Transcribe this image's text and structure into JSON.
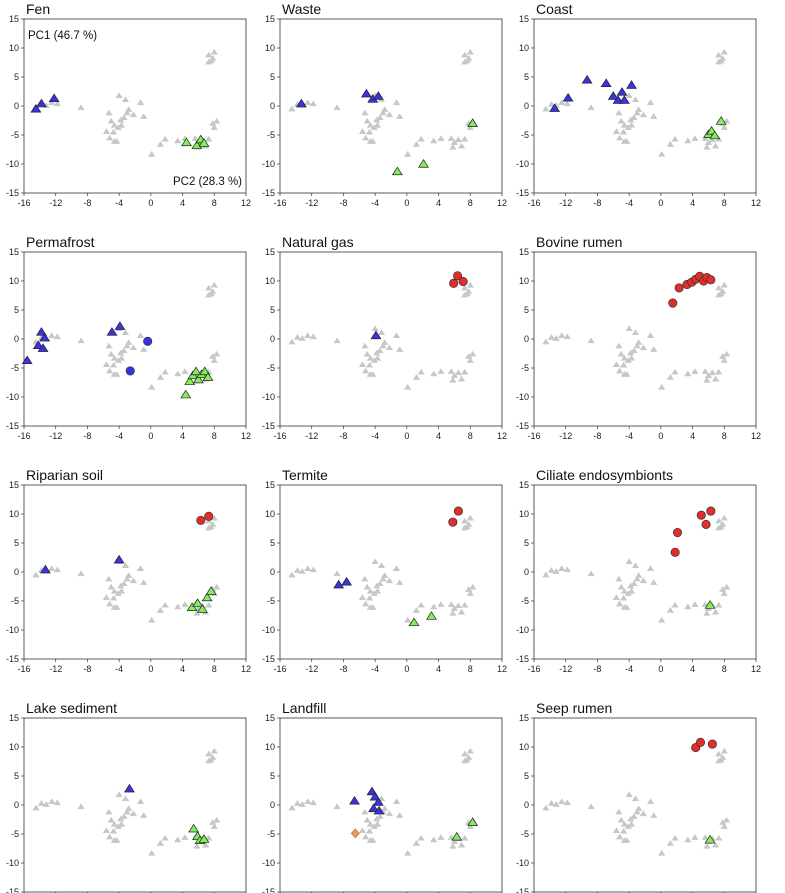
{
  "colors": {
    "grey": "#c4c8c6",
    "blue": "#3a33e6",
    "green": "#82ee5a",
    "red": "#e12e2a",
    "orange": "#f09a5c"
  },
  "axes": {
    "xticks": [
      "-16",
      "-12",
      "-8",
      "-4",
      "0",
      "4",
      "8",
      "12"
    ],
    "yticks": [
      "15",
      "10",
      "5",
      "0",
      "-5",
      "-10",
      "-15"
    ],
    "pc1_label": "PC1 (46.7 %)",
    "pc2_label": "PC2 (28.3 %)"
  },
  "chart_data": {
    "type": "scatter",
    "xlim": [
      -16,
      12
    ],
    "ylim": [
      -15,
      15
    ],
    "grid": false,
    "background_points": [
      [
        -14.5,
        -0.5
      ],
      [
        -13.8,
        0.3
      ],
      [
        -13.2,
        0.1
      ],
      [
        -12.5,
        0.6
      ],
      [
        -11.8,
        0.4
      ],
      [
        -8.8,
        -0.3
      ],
      [
        -5.3,
        -1.2
      ],
      [
        -5.0,
        -2.6
      ],
      [
        -4.6,
        -3.3
      ],
      [
        -4.7,
        -4.5
      ],
      [
        -4.1,
        -3.7
      ],
      [
        -3.8,
        -2.4
      ],
      [
        -3.4,
        -2.0
      ],
      [
        -3.0,
        -1.2
      ],
      [
        -4.0,
        1.8
      ],
      [
        -3.2,
        1.1
      ],
      [
        -5.6,
        -4.4
      ],
      [
        -5.2,
        -5.5
      ],
      [
        -4.6,
        -6.1
      ],
      [
        -3.7,
        -3.3
      ],
      [
        -2.8,
        -0.6
      ],
      [
        -2.2,
        -1.5
      ],
      [
        -0.9,
        -1.8
      ],
      [
        -1.3,
        0.6
      ],
      [
        -4.3,
        -6.1
      ],
      [
        0.1,
        -8.3
      ],
      [
        1.2,
        -6.6
      ],
      [
        1.8,
        -5.7
      ],
      [
        3.4,
        -6.0
      ],
      [
        4.3,
        -5.6
      ],
      [
        5.6,
        -5.6
      ],
      [
        6.0,
        -6.3
      ],
      [
        6.5,
        -5.8
      ],
      [
        5.8,
        -7.1
      ],
      [
        6.9,
        -6.9
      ],
      [
        7.3,
        -5.7
      ],
      [
        7.8,
        -3.0
      ],
      [
        8.3,
        -2.6
      ],
      [
        8.0,
        -3.7
      ],
      [
        7.3,
        7.6
      ],
      [
        7.8,
        8.2
      ],
      [
        7.3,
        8.8
      ],
      [
        8.0,
        9.3
      ],
      [
        7.6,
        7.8
      ]
    ],
    "panels": [
      {
        "title": "Fen",
        "points": [
          {
            "x": -14.5,
            "y": -0.5,
            "c": "blue",
            "m": "tri"
          },
          {
            "x": -13.8,
            "y": 0.4,
            "c": "blue",
            "m": "tri"
          },
          {
            "x": -12.2,
            "y": 1.3,
            "c": "blue",
            "m": "tri"
          },
          {
            "x": 4.5,
            "y": -6.3,
            "c": "green",
            "m": "tri"
          },
          {
            "x": 5.8,
            "y": -6.8,
            "c": "green",
            "m": "tri"
          },
          {
            "x": 6.3,
            "y": -5.8,
            "c": "green",
            "m": "tri"
          },
          {
            "x": 6.7,
            "y": -6.4,
            "c": "green",
            "m": "tri"
          }
        ]
      },
      {
        "title": "Waste",
        "points": [
          {
            "x": -13.3,
            "y": 0.4,
            "c": "blue",
            "m": "tri"
          },
          {
            "x": -5.1,
            "y": 2.1,
            "c": "blue",
            "m": "tri"
          },
          {
            "x": -4.3,
            "y": 1.2,
            "c": "blue",
            "m": "tri"
          },
          {
            "x": -3.6,
            "y": 1.7,
            "c": "blue",
            "m": "tri"
          },
          {
            "x": -1.2,
            "y": -11.3,
            "c": "green",
            "m": "tri"
          },
          {
            "x": 2.1,
            "y": -10.0,
            "c": "green",
            "m": "tri"
          },
          {
            "x": 8.3,
            "y": -3.0,
            "c": "green",
            "m": "tri"
          }
        ]
      },
      {
        "title": "Coast",
        "points": [
          {
            "x": -13.4,
            "y": -0.4,
            "c": "blue",
            "m": "tri"
          },
          {
            "x": -11.7,
            "y": 1.4,
            "c": "blue",
            "m": "tri"
          },
          {
            "x": -9.3,
            "y": 4.5,
            "c": "blue",
            "m": "tri"
          },
          {
            "x": -6.9,
            "y": 3.9,
            "c": "blue",
            "m": "tri"
          },
          {
            "x": -6.0,
            "y": 1.7,
            "c": "blue",
            "m": "tri"
          },
          {
            "x": -5.4,
            "y": 1.0,
            "c": "blue",
            "m": "tri"
          },
          {
            "x": -4.9,
            "y": 2.4,
            "c": "blue",
            "m": "tri"
          },
          {
            "x": -4.6,
            "y": 1.0,
            "c": "blue",
            "m": "tri"
          },
          {
            "x": -3.7,
            "y": 3.6,
            "c": "blue",
            "m": "tri"
          },
          {
            "x": 6.0,
            "y": -4.9,
            "c": "green",
            "m": "tri"
          },
          {
            "x": 6.4,
            "y": -4.3,
            "c": "green",
            "m": "tri"
          },
          {
            "x": 6.8,
            "y": -5.1,
            "c": "green",
            "m": "tri"
          },
          {
            "x": 7.6,
            "y": -2.6,
            "c": "green",
            "m": "tri"
          }
        ]
      },
      {
        "title": "Permafrost",
        "points": [
          {
            "x": -15.6,
            "y": -3.7,
            "c": "blue",
            "m": "tri"
          },
          {
            "x": -14.2,
            "y": -1.1,
            "c": "blue",
            "m": "tri"
          },
          {
            "x": -13.8,
            "y": 1.2,
            "c": "blue",
            "m": "tri"
          },
          {
            "x": -13.4,
            "y": 0.2,
            "c": "blue",
            "m": "tri"
          },
          {
            "x": -13.6,
            "y": -1.6,
            "c": "blue",
            "m": "tri"
          },
          {
            "x": -4.9,
            "y": 1.2,
            "c": "blue",
            "m": "tri"
          },
          {
            "x": -3.9,
            "y": 2.2,
            "c": "blue",
            "m": "tri"
          },
          {
            "x": -0.4,
            "y": -0.4,
            "c": "blue",
            "m": "circ"
          },
          {
            "x": -2.6,
            "y": -5.5,
            "c": "blue",
            "m": "circ"
          },
          {
            "x": 4.4,
            "y": -9.6,
            "c": "green",
            "m": "tri"
          },
          {
            "x": 4.9,
            "y": -7.3,
            "c": "green",
            "m": "tri"
          },
          {
            "x": 5.3,
            "y": -6.3,
            "c": "green",
            "m": "tri"
          },
          {
            "x": 5.7,
            "y": -5.6,
            "c": "green",
            "m": "tri"
          },
          {
            "x": 6.0,
            "y": -7.0,
            "c": "green",
            "m": "tri"
          },
          {
            "x": 6.4,
            "y": -6.1,
            "c": "green",
            "m": "tri"
          },
          {
            "x": 6.8,
            "y": -5.6,
            "c": "green",
            "m": "tri"
          },
          {
            "x": 7.2,
            "y": -6.6,
            "c": "green",
            "m": "tri"
          }
        ]
      },
      {
        "title": "Natural gas",
        "points": [
          {
            "x": -3.9,
            "y": 0.6,
            "c": "blue",
            "m": "tri"
          },
          {
            "x": 5.9,
            "y": 9.6,
            "c": "red",
            "m": "circ"
          },
          {
            "x": 6.4,
            "y": 10.9,
            "c": "red",
            "m": "circ"
          },
          {
            "x": 7.1,
            "y": 9.9,
            "c": "red",
            "m": "circ"
          }
        ]
      },
      {
        "title": "Bovine rumen",
        "points": [
          {
            "x": 1.5,
            "y": 6.2,
            "c": "red",
            "m": "circ"
          },
          {
            "x": 2.3,
            "y": 8.8,
            "c": "red",
            "m": "circ"
          },
          {
            "x": 3.3,
            "y": 9.4,
            "c": "red",
            "m": "circ"
          },
          {
            "x": 3.9,
            "y": 9.8,
            "c": "red",
            "m": "circ"
          },
          {
            "x": 4.4,
            "y": 10.3,
            "c": "red",
            "m": "circ"
          },
          {
            "x": 4.9,
            "y": 10.8,
            "c": "red",
            "m": "circ"
          },
          {
            "x": 5.4,
            "y": 10.0,
            "c": "red",
            "m": "circ"
          },
          {
            "x": 5.8,
            "y": 10.6,
            "c": "red",
            "m": "circ"
          },
          {
            "x": 6.3,
            "y": 10.2,
            "c": "red",
            "m": "circ"
          }
        ]
      },
      {
        "title": "Riparian soil",
        "points": [
          {
            "x": -13.3,
            "y": 0.4,
            "c": "blue",
            "m": "tri"
          },
          {
            "x": -4.0,
            "y": 2.1,
            "c": "blue",
            "m": "tri"
          },
          {
            "x": 6.3,
            "y": 8.9,
            "c": "red",
            "m": "circ"
          },
          {
            "x": 7.3,
            "y": 9.6,
            "c": "red",
            "m": "circ"
          },
          {
            "x": 5.2,
            "y": -6.1,
            "c": "green",
            "m": "tri"
          },
          {
            "x": 5.9,
            "y": -5.4,
            "c": "green",
            "m": "tri"
          },
          {
            "x": 6.5,
            "y": -6.4,
            "c": "green",
            "m": "tri"
          },
          {
            "x": 7.1,
            "y": -4.4,
            "c": "green",
            "m": "tri"
          },
          {
            "x": 7.6,
            "y": -3.3,
            "c": "green",
            "m": "tri"
          }
        ]
      },
      {
        "title": "Termite",
        "points": [
          {
            "x": -8.6,
            "y": -2.2,
            "c": "blue",
            "m": "tri"
          },
          {
            "x": -7.6,
            "y": -1.7,
            "c": "blue",
            "m": "tri"
          },
          {
            "x": 0.9,
            "y": -8.7,
            "c": "green",
            "m": "tri"
          },
          {
            "x": 3.1,
            "y": -7.6,
            "c": "green",
            "m": "tri"
          },
          {
            "x": 5.8,
            "y": 8.6,
            "c": "red",
            "m": "circ"
          },
          {
            "x": 6.5,
            "y": 10.5,
            "c": "red",
            "m": "circ"
          }
        ]
      },
      {
        "title": "Ciliate endosymbionts",
        "points": [
          {
            "x": 1.8,
            "y": 3.4,
            "c": "red",
            "m": "circ"
          },
          {
            "x": 2.1,
            "y": 6.8,
            "c": "red",
            "m": "circ"
          },
          {
            "x": 5.1,
            "y": 9.8,
            "c": "red",
            "m": "circ"
          },
          {
            "x": 5.7,
            "y": 8.2,
            "c": "red",
            "m": "circ"
          },
          {
            "x": 6.3,
            "y": 10.5,
            "c": "red",
            "m": "circ"
          },
          {
            "x": 6.2,
            "y": -5.7,
            "c": "green",
            "m": "tri"
          }
        ]
      },
      {
        "title": "Lake sediment",
        "points": [
          {
            "x": -2.7,
            "y": 2.8,
            "c": "blue",
            "m": "tri"
          },
          {
            "x": 5.4,
            "y": -4.1,
            "c": "green",
            "m": "tri"
          },
          {
            "x": 5.9,
            "y": -5.4,
            "c": "green",
            "m": "tri"
          },
          {
            "x": 6.2,
            "y": -6.1,
            "c": "green",
            "m": "tri"
          },
          {
            "x": 6.7,
            "y": -5.9,
            "c": "green",
            "m": "tri"
          }
        ]
      },
      {
        "title": "Landfill",
        "points": [
          {
            "x": -6.6,
            "y": 0.7,
            "c": "blue",
            "m": "tri"
          },
          {
            "x": -4.4,
            "y": 2.3,
            "c": "blue",
            "m": "tri"
          },
          {
            "x": -4.0,
            "y": 1.4,
            "c": "blue",
            "m": "tri"
          },
          {
            "x": -3.6,
            "y": 0.5,
            "c": "blue",
            "m": "tri"
          },
          {
            "x": -4.2,
            "y": -0.6,
            "c": "blue",
            "m": "tri"
          },
          {
            "x": -3.5,
            "y": -1.0,
            "c": "blue",
            "m": "tri"
          },
          {
            "x": -6.5,
            "y": -4.9,
            "c": "orange",
            "m": "diam"
          },
          {
            "x": 6.3,
            "y": -5.5,
            "c": "green",
            "m": "tri"
          },
          {
            "x": 8.3,
            "y": -3.0,
            "c": "green",
            "m": "tri"
          }
        ]
      },
      {
        "title": "Seep rumen",
        "points": [
          {
            "x": 4.4,
            "y": 9.9,
            "c": "red",
            "m": "circ"
          },
          {
            "x": 5.0,
            "y": 10.8,
            "c": "red",
            "m": "circ"
          },
          {
            "x": 6.5,
            "y": 10.5,
            "c": "red",
            "m": "circ"
          },
          {
            "x": 6.2,
            "y": -6.0,
            "c": "green",
            "m": "tri"
          }
        ]
      }
    ]
  }
}
